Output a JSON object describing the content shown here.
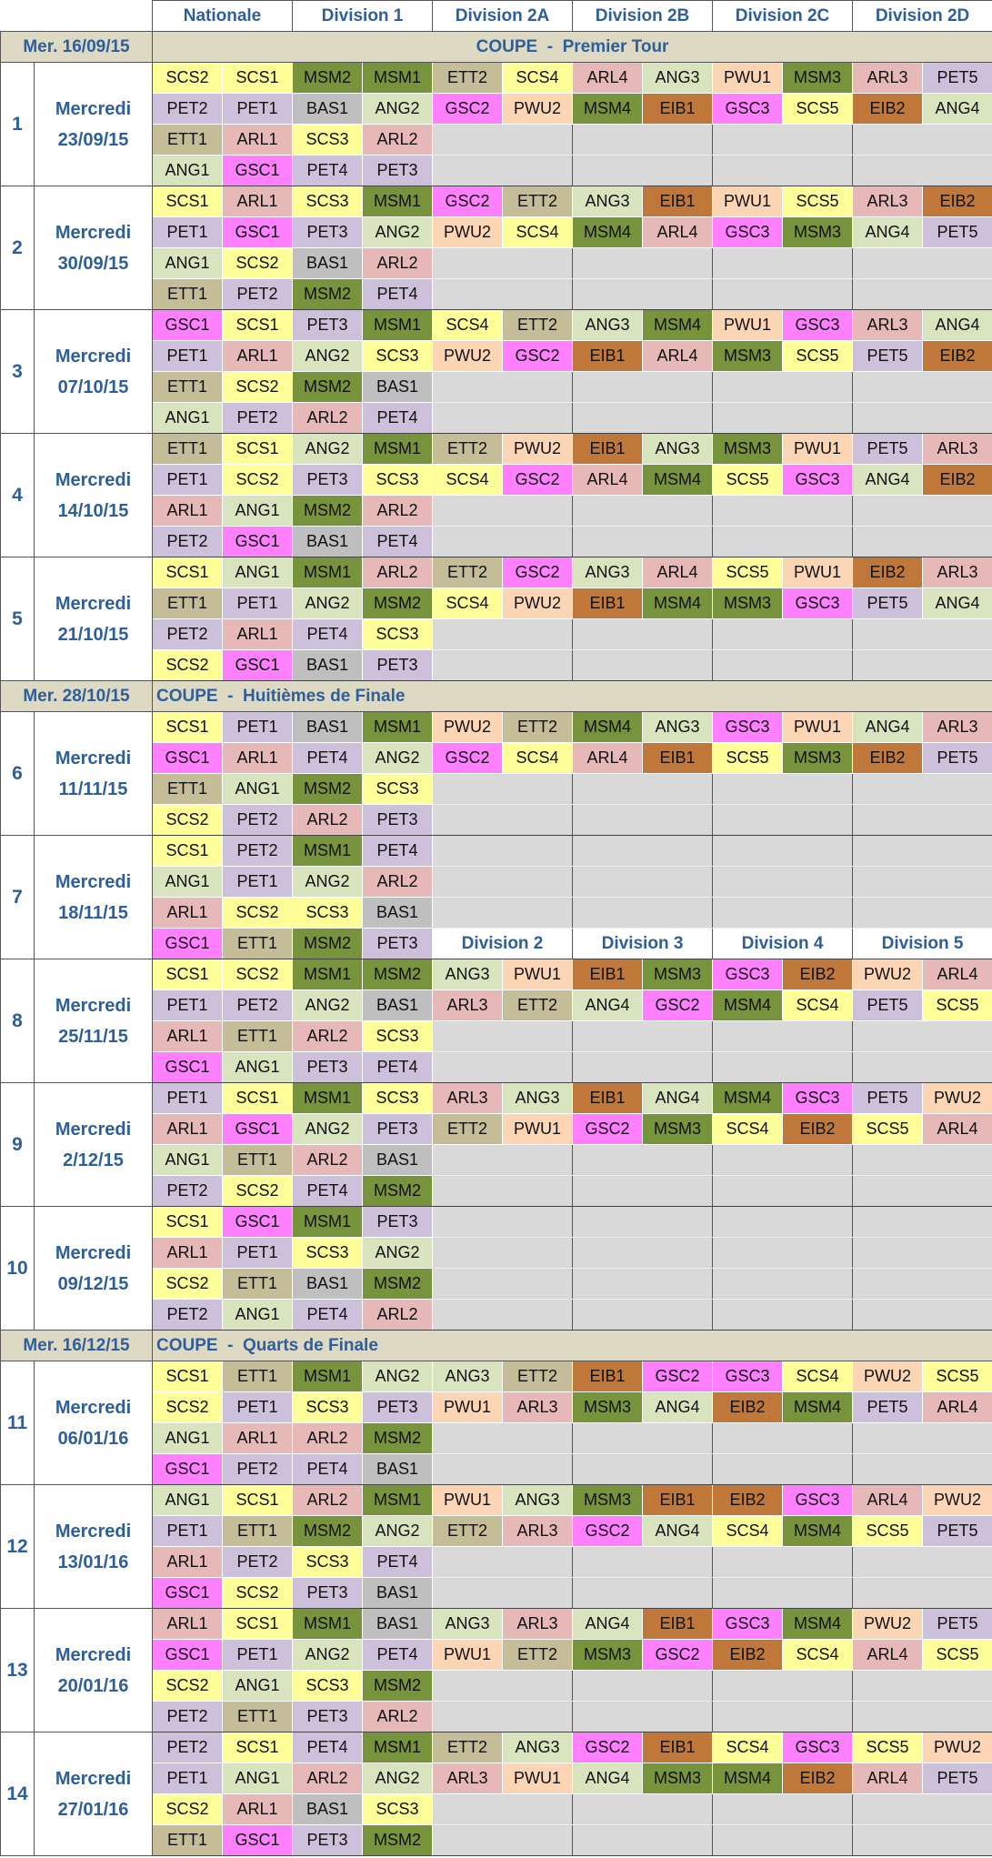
{
  "header": {
    "columns": [
      "Nationale",
      "Division 1",
      "Division 2A",
      "Division 2B",
      "Division 2C",
      "Division 2D"
    ]
  },
  "blocks": [
    {
      "type": "coupe",
      "date": "Mer. 16/09/15",
      "label": "COUPE  -  Premier Tour"
    },
    {
      "type": "round",
      "number": 1,
      "day": "Mercredi",
      "date": "23/09/15",
      "rows": [
        [
          "SCS2",
          "SCS1",
          "MSM2",
          "MSM1",
          "ETT2",
          "SCS4",
          "ARL4",
          "ANG3",
          "PWU1",
          "MSM3",
          "ARL3",
          "PET5"
        ],
        [
          "PET2",
          "PET1",
          "BAS1",
          "ANG2",
          "GSC2",
          "PWU2",
          "MSM4",
          "EIB1",
          "GSC3",
          "SCS5",
          "EIB2",
          "ANG4"
        ],
        [
          "ETT1",
          "ARL1",
          "SCS3",
          "ARL2"
        ],
        [
          "ANG1",
          "GSC1",
          "PET4",
          "PET3"
        ]
      ]
    },
    {
      "type": "round",
      "number": 2,
      "day": "Mercredi",
      "date": "30/09/15",
      "rows": [
        [
          "SCS1",
          "ARL1",
          "SCS3",
          "MSM1",
          "GSC2",
          "ETT2",
          "ANG3",
          "EIB1",
          "PWU1",
          "SCS5",
          "ARL3",
          "EIB2"
        ],
        [
          "PET1",
          "GSC1",
          "PET3",
          "ANG2",
          "PWU2",
          "SCS4",
          "MSM4",
          "ARL4",
          "GSC3",
          "MSM3",
          "ANG4",
          "PET5"
        ],
        [
          "ANG1",
          "SCS2",
          "BAS1",
          "ARL2"
        ],
        [
          "ETT1",
          "PET2",
          "MSM2",
          "PET4"
        ]
      ]
    },
    {
      "type": "round",
      "number": 3,
      "day": "Mercredi",
      "date": "07/10/15",
      "rows": [
        [
          "GSC1",
          "SCS1",
          "PET3",
          "MSM1",
          "SCS4",
          "ETT2",
          "ANG3",
          "MSM4",
          "PWU1",
          "GSC3",
          "ARL3",
          "ANG4"
        ],
        [
          "PET1",
          "ARL1",
          "ANG2",
          "SCS3",
          "PWU2",
          "GSC2",
          "EIB1",
          "ARL4",
          "MSM3",
          "SCS5",
          "PET5",
          "EIB2"
        ],
        [
          "ETT1",
          "SCS2",
          "MSM2",
          "BAS1"
        ],
        [
          "ANG1",
          "PET2",
          "ARL2",
          "PET4"
        ]
      ]
    },
    {
      "type": "round",
      "number": 4,
      "day": "Mercredi",
      "date": "14/10/15",
      "rows": [
        [
          "ETT1",
          "SCS1",
          "ANG2",
          "MSM1",
          "ETT2",
          "PWU2",
          "EIB1",
          "ANG3",
          "MSM3",
          "PWU1",
          "PET5",
          "ARL3"
        ],
        [
          "PET1",
          "SCS2",
          "PET3",
          "SCS3",
          "SCS4",
          "GSC2",
          "ARL4",
          "MSM4",
          "SCS5",
          "GSC3",
          "ANG4",
          "EIB2"
        ],
        [
          "ARL1",
          "ANG1",
          "MSM2",
          "ARL2"
        ],
        [
          "PET2",
          "GSC1",
          "BAS1",
          "PET4"
        ]
      ]
    },
    {
      "type": "round",
      "number": 5,
      "day": "Mercredi",
      "date": "21/10/15",
      "rows": [
        [
          "SCS1",
          "ANG1",
          "MSM1",
          "ARL2",
          "ETT2",
          "GSC2",
          "ANG3",
          "ARL4",
          "SCS5",
          "PWU1",
          "EIB2",
          "ARL3"
        ],
        [
          "ETT1",
          "PET1",
          "ANG2",
          "MSM2",
          "SCS4",
          "PWU2",
          "EIB1",
          "MSM4",
          "MSM3",
          "GSC3",
          "PET5",
          "ANG4"
        ],
        [
          "PET2",
          "ARL1",
          "PET4",
          "SCS3"
        ],
        [
          "SCS2",
          "GSC1",
          "BAS1",
          "PET3"
        ]
      ]
    },
    {
      "type": "coupe",
      "date": "Mer. 28/10/15",
      "label": "COUPE  -  Huitièmes de Finale"
    },
    {
      "type": "round",
      "number": 6,
      "day": "Mercredi",
      "date": "11/11/15",
      "rows": [
        [
          "SCS1",
          "PET1",
          "BAS1",
          "MSM1",
          "PWU2",
          "ETT2",
          "MSM4",
          "ANG3",
          "GSC3",
          "PWU1",
          "ANG4",
          "ARL3"
        ],
        [
          "GSC1",
          "ARL1",
          "PET4",
          "ANG2",
          "GSC2",
          "SCS4",
          "ARL4",
          "EIB1",
          "SCS5",
          "MSM3",
          "EIB2",
          "PET5"
        ],
        [
          "ETT1",
          "ANG1",
          "MSM2",
          "SCS3"
        ],
        [
          "SCS2",
          "PET2",
          "ARL2",
          "PET3"
        ]
      ]
    },
    {
      "type": "round",
      "number": 7,
      "day": "Mercredi",
      "date": "18/11/15",
      "rows": [
        [
          "SCS1",
          "PET2",
          "MSM1",
          "PET4"
        ],
        [
          "ANG1",
          "PET1",
          "ANG2",
          "ARL2"
        ],
        [
          "ARL1",
          "SCS2",
          "SCS3",
          "BAS1"
        ],
        [
          "GSC1",
          "ETT1",
          "MSM2",
          "PET3"
        ]
      ],
      "subheader": [
        "Division 2",
        "Division 3",
        "Division 4",
        "Division 5"
      ]
    },
    {
      "type": "round",
      "number": 8,
      "day": "Mercredi",
      "date": "25/11/15",
      "rows": [
        [
          "SCS1",
          "SCS2",
          "MSM1",
          "MSM2",
          "ANG3",
          "PWU1",
          "EIB1",
          "MSM3",
          "GSC3",
          "EIB2",
          "PWU2",
          "ARL4"
        ],
        [
          "PET1",
          "PET2",
          "ANG2",
          "BAS1",
          "ARL3",
          "ETT2",
          "ANG4",
          "GSC2",
          "MSM4",
          "SCS4",
          "PET5",
          "SCS5"
        ],
        [
          "ARL1",
          "ETT1",
          "ARL2",
          "SCS3"
        ],
        [
          "GSC1",
          "ANG1",
          "PET3",
          "PET4"
        ]
      ]
    },
    {
      "type": "round",
      "number": 9,
      "day": "Mercredi",
      "date": "2/12/15",
      "rows": [
        [
          "PET1",
          "SCS1",
          "MSM1",
          "SCS3",
          "ARL3",
          "ANG3",
          "EIB1",
          "ANG4",
          "MSM4",
          "GSC3",
          "PET5",
          "PWU2"
        ],
        [
          "ARL1",
          "GSC1",
          "ANG2",
          "PET3",
          "ETT2",
          "PWU1",
          "GSC2",
          "MSM3",
          "SCS4",
          "EIB2",
          "SCS5",
          "ARL4"
        ],
        [
          "ANG1",
          "ETT1",
          "ARL2",
          "BAS1"
        ],
        [
          "PET2",
          "SCS2",
          "PET4",
          "MSM2"
        ]
      ]
    },
    {
      "type": "round",
      "number": 10,
      "day": "Mercredi",
      "date": "09/12/15",
      "rows": [
        [
          "SCS1",
          "GSC1",
          "MSM1",
          "PET3"
        ],
        [
          "ARL1",
          "PET1",
          "SCS3",
          "ANG2"
        ],
        [
          "SCS2",
          "ETT1",
          "BAS1",
          "MSM2"
        ],
        [
          "PET2",
          "ANG1",
          "PET4",
          "ARL2"
        ]
      ]
    },
    {
      "type": "coupe",
      "date": "Mer. 16/12/15",
      "label": "COUPE  -  Quarts de Finale"
    },
    {
      "type": "round",
      "number": 11,
      "day": "Mercredi",
      "date": "06/01/16",
      "rows": [
        [
          "SCS1",
          "ETT1",
          "MSM1",
          "ANG2",
          "ANG3",
          "ETT2",
          "EIB1",
          "GSC2",
          "GSC3",
          "SCS4",
          "PWU2",
          "SCS5"
        ],
        [
          "SCS2",
          "PET1",
          "SCS3",
          "PET3",
          "PWU1",
          "ARL3",
          "MSM3",
          "ANG4",
          "EIB2",
          "MSM4",
          "PET5",
          "ARL4"
        ],
        [
          "ANG1",
          "ARL1",
          "ARL2",
          "MSM2"
        ],
        [
          "GSC1",
          "PET2",
          "PET4",
          "BAS1"
        ]
      ]
    },
    {
      "type": "round",
      "number": 12,
      "day": "Mercredi",
      "date": "13/01/16",
      "rows": [
        [
          "ANG1",
          "SCS1",
          "ARL2",
          "MSM1",
          "PWU1",
          "ANG3",
          "MSM3",
          "EIB1",
          "EIB2",
          "GSC3",
          "ARL4",
          "PWU2"
        ],
        [
          "PET1",
          "ETT1",
          "MSM2",
          "ANG2",
          "ETT2",
          "ARL3",
          "GSC2",
          "ANG4",
          "SCS4",
          "MSM4",
          "SCS5",
          "PET5"
        ],
        [
          "ARL1",
          "PET2",
          "SCS3",
          "PET4"
        ],
        [
          "GSC1",
          "SCS2",
          "PET3",
          "BAS1"
        ]
      ]
    },
    {
      "type": "round",
      "number": 13,
      "day": "Mercredi",
      "date": "20/01/16",
      "rows": [
        [
          "ARL1",
          "SCS1",
          "MSM1",
          "BAS1",
          "ANG3",
          "ARL3",
          "ANG4",
          "EIB1",
          "GSC3",
          "MSM4",
          "PWU2",
          "PET5"
        ],
        [
          "GSC1",
          "PET1",
          "ANG2",
          "PET4",
          "PWU1",
          "ETT2",
          "MSM3",
          "GSC2",
          "EIB2",
          "SCS4",
          "ARL4",
          "SCS5"
        ],
        [
          "SCS2",
          "ANG1",
          "SCS3",
          "MSM2"
        ],
        [
          "PET2",
          "ETT1",
          "PET3",
          "ARL2"
        ]
      ]
    },
    {
      "type": "round",
      "number": 14,
      "day": "Mercredi",
      "date": "27/01/16",
      "rows": [
        [
          "PET2",
          "SCS1",
          "PET4",
          "MSM1",
          "ETT2",
          "ANG3",
          "GSC2",
          "EIB1",
          "SCS4",
          "GSC3",
          "SCS5",
          "PWU2"
        ],
        [
          "PET1",
          "ANG1",
          "ARL2",
          "ANG2",
          "ARL3",
          "PWU1",
          "ANG4",
          "MSM3",
          "MSM4",
          "EIB2",
          "ARL4",
          "PET5"
        ],
        [
          "SCS2",
          "ARL1",
          "BAS1",
          "SCS3"
        ],
        [
          "ETT1",
          "GSC1",
          "PET3",
          "MSM2"
        ]
      ]
    }
  ]
}
